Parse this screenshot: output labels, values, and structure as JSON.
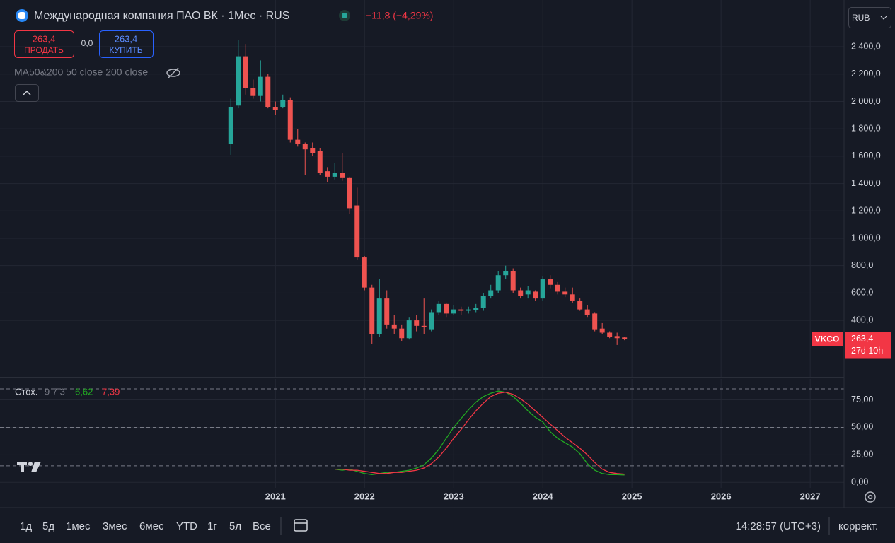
{
  "ui": {
    "title": "Международная компания ПАО ВК · 1Мес · RUS",
    "change": "−11,8 (−4,29%)",
    "sell_price": "263,4",
    "sell": "ПРОДАТЬ",
    "spread": "0,0",
    "buy_price": "263,4",
    "buy": "КУПИТЬ",
    "indicator": "MA50&200 50 close 200 close",
    "currency": "RUB",
    "symbol": "VKCO",
    "last_price": "263,4",
    "countdown": "27d 10h",
    "stoch_name": "Стох.",
    "stoch_params": "9 7 3",
    "ranges": [
      "1д",
      "5д",
      "1мес",
      "3мес",
      "6мес",
      "YTD",
      "1г",
      "5л",
      "Все"
    ],
    "clock": "14:28:57 (UTC+3)",
    "adjust": "коррект."
  },
  "chart_data": [
    {
      "type": "candlestick",
      "up_color": "#26a69a",
      "down_color": "#ef5350",
      "grid": true,
      "x": [
        "2020-07",
        "2020-08",
        "2020-09",
        "2020-10",
        "2020-11",
        "2020-12",
        "2021-01",
        "2021-02",
        "2021-03",
        "2021-04",
        "2021-05",
        "2021-06",
        "2021-07",
        "2021-08",
        "2021-09",
        "2021-10",
        "2021-11",
        "2021-12",
        "2022-01",
        "2022-02",
        "2022-03",
        "2022-04",
        "2022-05",
        "2022-06",
        "2022-07",
        "2022-08",
        "2022-09",
        "2022-10",
        "2022-11",
        "2022-12",
        "2023-01",
        "2023-02",
        "2023-03",
        "2023-04",
        "2023-05",
        "2023-06",
        "2023-07",
        "2023-08",
        "2023-09",
        "2023-10",
        "2023-11",
        "2023-12",
        "2024-01",
        "2024-02",
        "2024-03",
        "2024-04",
        "2024-05",
        "2024-06",
        "2024-07",
        "2024-08",
        "2024-09",
        "2024-10",
        "2024-11",
        "2024-12"
      ],
      "open": [
        1690,
        1970,
        2330,
        2100,
        2040,
        2180,
        1960,
        1960,
        2010,
        1720,
        1690,
        1660,
        1640,
        1490,
        1450,
        1480,
        1440,
        1240,
        860,
        640,
        300,
        560,
        370,
        340,
        270,
        400,
        360,
        330,
        460,
        520,
        450,
        480,
        470,
        475,
        490,
        580,
        620,
        730,
        760,
        620,
        590,
        610,
        560,
        700,
        660,
        610,
        590,
        540,
        480,
        450,
        340,
        310,
        285,
        275
      ],
      "high": [
        2020,
        2450,
        2420,
        2160,
        2300,
        2200,
        2000,
        2050,
        2030,
        1800,
        1700,
        1700,
        1660,
        1520,
        1550,
        1620,
        1450,
        1370,
        870,
        660,
        700,
        620,
        440,
        370,
        420,
        440,
        560,
        480,
        540,
        530,
        510,
        500,
        500,
        520,
        600,
        660,
        760,
        800,
        780,
        640,
        650,
        620,
        720,
        730,
        680,
        640,
        640,
        560,
        510,
        460,
        380,
        320,
        310,
        280
      ],
      "low": [
        1610,
        1950,
        2050,
        2020,
        2000,
        1950,
        1900,
        1950,
        1700,
        1670,
        1460,
        1600,
        1460,
        1410,
        1430,
        1420,
        1180,
        840,
        620,
        230,
        280,
        340,
        300,
        250,
        260,
        320,
        300,
        320,
        440,
        420,
        440,
        440,
        450,
        460,
        470,
        560,
        600,
        700,
        600,
        560,
        560,
        540,
        540,
        630,
        590,
        570,
        530,
        470,
        420,
        320,
        300,
        270,
        220,
        255
      ],
      "close": [
        1960,
        2330,
        2100,
        2040,
        2180,
        1960,
        1940,
        2010,
        1720,
        1690,
        1650,
        1620,
        1480,
        1450,
        1480,
        1440,
        1220,
        860,
        640,
        300,
        560,
        370,
        340,
        270,
        400,
        360,
        350,
        460,
        520,
        450,
        480,
        470,
        480,
        490,
        580,
        620,
        730,
        760,
        620,
        580,
        620,
        560,
        700,
        660,
        610,
        590,
        540,
        480,
        440,
        330,
        310,
        280,
        270,
        263.4
      ],
      "last": 263.4,
      "xlim": [
        2017.91,
        2027.38
      ],
      "xticks": [
        2021,
        2022,
        2023,
        2024,
        2025,
        2026,
        2027
      ],
      "ylim": [
        -13,
        2700
      ],
      "yticks": [
        {
          "value": 400,
          "label": "400,0"
        },
        {
          "value": 600,
          "label": "600,0"
        },
        {
          "value": 800,
          "label": "800,0"
        },
        {
          "value": 1000,
          "label": "1 000,0"
        },
        {
          "value": 1200,
          "label": "1 200,0"
        },
        {
          "value": 1400,
          "label": "1 400,0"
        },
        {
          "value": 1600,
          "label": "1 600,0"
        },
        {
          "value": 1800,
          "label": "1 800,0"
        },
        {
          "value": 2000,
          "label": "2 000,0"
        },
        {
          "value": 2200,
          "label": "2 200,0"
        },
        {
          "value": 2400,
          "label": "2 400,0"
        }
      ]
    },
    {
      "type": "line",
      "grid": true,
      "x": [
        "2021-09",
        "2021-10",
        "2021-11",
        "2021-12",
        "2022-01",
        "2022-02",
        "2022-03",
        "2022-04",
        "2022-05",
        "2022-06",
        "2022-07",
        "2022-08",
        "2022-09",
        "2022-10",
        "2022-11",
        "2022-12",
        "2023-01",
        "2023-02",
        "2023-03",
        "2023-04",
        "2023-05",
        "2023-06",
        "2023-07",
        "2023-08",
        "2023-09",
        "2023-10",
        "2023-11",
        "2023-12",
        "2024-01",
        "2024-02",
        "2024-03",
        "2024-04",
        "2024-05",
        "2024-06",
        "2024-07",
        "2024-08",
        "2024-09",
        "2024-10",
        "2024-11",
        "2024-12"
      ],
      "series": [
        {
          "color": "#22ab22",
          "last_label": "6,62",
          "values": [
            12,
            11,
            12,
            10,
            8,
            7,
            8,
            9,
            9,
            10,
            11,
            13,
            16,
            22,
            30,
            40,
            50,
            58,
            66,
            73,
            78,
            81,
            83,
            82,
            78,
            72,
            65,
            59,
            55,
            46,
            40,
            36,
            32,
            26,
            17,
            11,
            8,
            7,
            7,
            6.62
          ]
        },
        {
          "color": "#f23645",
          "last_label": "7,39",
          "values": [
            12,
            12,
            11,
            11,
            10,
            9,
            8,
            8,
            9,
            9,
            10,
            11,
            13,
            17,
            23,
            31,
            40,
            48,
            57,
            65,
            72,
            78,
            81,
            82,
            80,
            76,
            71,
            65,
            59,
            53,
            47,
            41,
            36,
            31,
            25,
            18,
            12,
            9,
            8,
            7.39
          ]
        }
      ],
      "levels": [
        85,
        50,
        15
      ],
      "xlim": [
        2017.91,
        2027.38
      ],
      "ylim": [
        -5,
        94
      ],
      "yticks": [
        {
          "value": 0,
          "label": "0,00"
        },
        {
          "value": 25,
          "label": "25,00"
        },
        {
          "value": 50,
          "label": "50,00"
        },
        {
          "value": 75,
          "label": "75,00"
        }
      ]
    }
  ]
}
